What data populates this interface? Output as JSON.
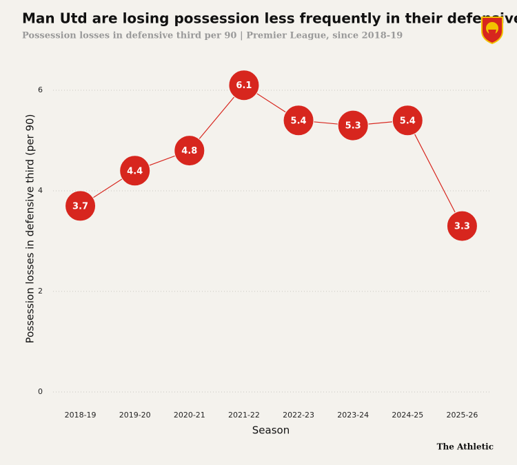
{
  "chart_data": {
    "type": "line",
    "title": "Man Utd are losing possession less frequently in their defensive third",
    "subtitle": "Possession losses in defensive third  per 90 | Premier League, since 2018-19",
    "x_label": "Season",
    "y_label": "Possession losses in defensive third (per 90)",
    "categories": [
      "2018-19",
      "2019-20",
      "2020-21",
      "2021-22",
      "2022-23",
      "2023-24",
      "2024-25",
      "2025-26"
    ],
    "values": [
      3.7,
      4.4,
      4.8,
      6.1,
      5.4,
      5.3,
      5.4,
      3.3
    ],
    "color": "#d7261e",
    "ylim": [
      0,
      6.5
    ],
    "yticks": [
      0,
      2,
      4,
      6
    ],
    "grid": true,
    "source": "The Athletic"
  }
}
